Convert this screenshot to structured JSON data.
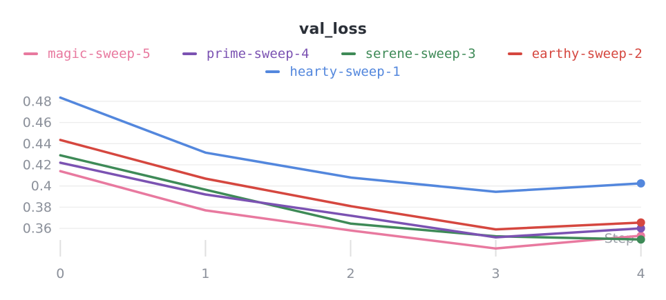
{
  "chart": {
    "title_color": "#2b3038",
    "axis_label_color": "#8b909a",
    "gridline_color": "#ececec",
    "tick_mark_color": "#e0e0e0",
    "x_axis_title_color": "#9ba0a8",
    "background": "#ffffff"
  },
  "chart_data": {
    "type": "line",
    "title": "val_loss",
    "xlabel": "Step",
    "ylabel": "",
    "x": [
      0,
      1,
      2,
      3,
      4
    ],
    "x_tick_labels": [
      "0",
      "1",
      "2",
      "3",
      "4"
    ],
    "y_tick_labels": [
      "0.48",
      "0.46",
      "0.44",
      "0.42",
      "0.4",
      "0.38",
      "0.36"
    ],
    "y_tick_values": [
      0.48,
      0.46,
      0.44,
      0.42,
      0.4,
      0.38,
      0.36
    ],
    "xlim": [
      0,
      4
    ],
    "ylim": [
      0.333,
      0.488
    ],
    "grid": "horizontal",
    "legend_position": "top",
    "end_point_markers": true,
    "series": [
      {
        "name": "magic-sweep-5",
        "color": "#e8799f",
        "values": [
          0.414,
          0.377,
          0.358,
          0.341,
          0.353
        ]
      },
      {
        "name": "prime-sweep-4",
        "color": "#7b52b2",
        "values": [
          0.422,
          0.392,
          0.372,
          0.3515,
          0.36
        ]
      },
      {
        "name": "serene-sweep-3",
        "color": "#3e8a57",
        "values": [
          0.429,
          0.3965,
          0.3645,
          0.3525,
          0.3495
        ]
      },
      {
        "name": "earthy-sweep-2",
        "color": "#d5473f",
        "values": [
          0.4435,
          0.407,
          0.381,
          0.359,
          0.3655
        ]
      },
      {
        "name": "hearty-sweep-1",
        "color": "#5387dd",
        "values": [
          0.4835,
          0.4315,
          0.408,
          0.3945,
          0.4025
        ]
      }
    ],
    "draw_order": [
      0,
      2,
      1,
      3,
      4
    ]
  },
  "legend": {
    "rows": [
      [
        0,
        1,
        2,
        3
      ],
      [
        4
      ]
    ]
  }
}
